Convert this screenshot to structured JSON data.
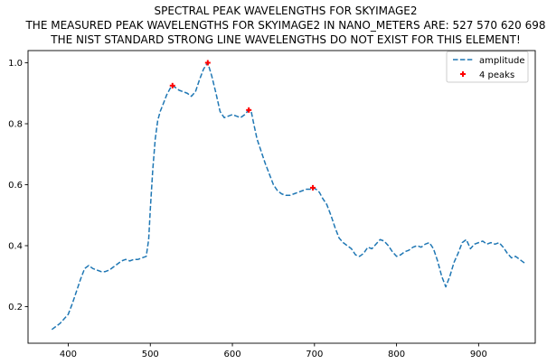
{
  "chart_data": {
    "type": "line",
    "title_lines": [
      "SPECTRAL PEAK WAVELENGTHS FOR SKYIMAGE2",
      "THE MEASURED PEAK WAVELENGTHS FOR SKYIMAGE2 IN NANO_METERS ARE: 527 570 620 698",
      "THE NIST STANDARD STRONG LINE WAVELENGTHS DO NOT EXIST FOR THIS ELEMENT!"
    ],
    "xlabel": "",
    "ylabel": "",
    "xlim": [
      351,
      969
    ],
    "ylim": [
      0.08,
      1.04
    ],
    "x_ticks": [
      400,
      500,
      600,
      700,
      800,
      900
    ],
    "y_ticks": [
      0.2,
      0.4,
      0.6,
      0.8,
      1.0
    ],
    "y_tick_labels": [
      "0.2",
      "0.4",
      "0.6",
      "0.8",
      "1.0"
    ],
    "grid": false,
    "legend": {
      "placement": "top-right",
      "entries": [
        "amplitude",
        "4 peaks"
      ]
    },
    "series": [
      {
        "name": "amplitude",
        "style": "dashed",
        "color": "#1f77b4",
        "x": [
          380,
          385,
          390,
          395,
          400,
          405,
          410,
          415,
          420,
          425,
          430,
          435,
          440,
          445,
          450,
          455,
          460,
          465,
          470,
          475,
          480,
          485,
          490,
          495,
          498,
          500,
          503,
          506,
          509,
          512,
          515,
          520,
          525,
          527,
          530,
          535,
          540,
          545,
          550,
          555,
          560,
          565,
          570,
          575,
          580,
          585,
          590,
          595,
          600,
          605,
          610,
          615,
          620,
          623,
          626,
          630,
          635,
          640,
          645,
          650,
          655,
          660,
          665,
          670,
          675,
          680,
          685,
          690,
          695,
          698,
          702,
          706,
          710,
          715,
          720,
          725,
          730,
          735,
          740,
          745,
          750,
          755,
          760,
          765,
          770,
          775,
          780,
          785,
          790,
          795,
          800,
          805,
          810,
          815,
          820,
          825,
          830,
          835,
          840,
          845,
          850,
          855,
          860,
          865,
          870,
          875,
          880,
          885,
          890,
          895,
          900,
          905,
          910,
          915,
          920,
          925,
          930,
          935,
          940,
          945,
          950,
          955,
          958
        ],
        "y": [
          0.125,
          0.135,
          0.145,
          0.16,
          0.175,
          0.21,
          0.25,
          0.29,
          0.325,
          0.335,
          0.325,
          0.32,
          0.315,
          0.315,
          0.32,
          0.33,
          0.34,
          0.35,
          0.355,
          0.35,
          0.355,
          0.355,
          0.36,
          0.365,
          0.42,
          0.52,
          0.65,
          0.75,
          0.81,
          0.84,
          0.86,
          0.895,
          0.92,
          0.925,
          0.92,
          0.91,
          0.905,
          0.9,
          0.89,
          0.905,
          0.945,
          0.98,
          1.0,
          0.955,
          0.9,
          0.84,
          0.82,
          0.825,
          0.83,
          0.825,
          0.82,
          0.83,
          0.845,
          0.84,
          0.8,
          0.75,
          0.71,
          0.67,
          0.635,
          0.6,
          0.58,
          0.57,
          0.565,
          0.565,
          0.57,
          0.575,
          0.58,
          0.585,
          0.585,
          0.59,
          0.585,
          0.575,
          0.555,
          0.535,
          0.5,
          0.46,
          0.425,
          0.41,
          0.4,
          0.39,
          0.37,
          0.365,
          0.375,
          0.395,
          0.39,
          0.405,
          0.42,
          0.415,
          0.4,
          0.38,
          0.365,
          0.37,
          0.38,
          0.385,
          0.395,
          0.4,
          0.395,
          0.405,
          0.41,
          0.39,
          0.35,
          0.3,
          0.265,
          0.3,
          0.345,
          0.375,
          0.41,
          0.42,
          0.39,
          0.405,
          0.41,
          0.415,
          0.405,
          0.41,
          0.405,
          0.41,
          0.395,
          0.375,
          0.36,
          0.365,
          0.355,
          0.345,
          0.34
        ]
      },
      {
        "name": "4 peaks",
        "style": "marker",
        "color": "#ff0000",
        "x": [
          527,
          570,
          620,
          698
        ],
        "y": [
          0.925,
          1.0,
          0.845,
          0.59
        ]
      }
    ]
  }
}
